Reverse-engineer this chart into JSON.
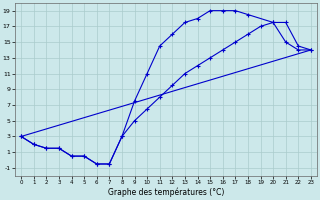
{
  "xlabel": "Graphe des températures (°C)",
  "bg_color": "#cce8ea",
  "grid_color": "#aacccc",
  "line_color": "#0000cc",
  "xlim": [
    -0.5,
    23.5
  ],
  "ylim": [
    -2,
    20
  ],
  "xticks": [
    0,
    1,
    2,
    3,
    4,
    5,
    6,
    7,
    8,
    9,
    10,
    11,
    12,
    13,
    14,
    15,
    16,
    17,
    18,
    19,
    20,
    21,
    22,
    23
  ],
  "yticks": [
    -1,
    1,
    3,
    5,
    7,
    9,
    11,
    13,
    15,
    17,
    19
  ],
  "line1_x": [
    0,
    1,
    2,
    3,
    4,
    5,
    6,
    7,
    8,
    9,
    10,
    11,
    12,
    13,
    14,
    15,
    16,
    17,
    18,
    20,
    21,
    22,
    23
  ],
  "line1_y": [
    3,
    2,
    1.5,
    1.5,
    0.5,
    0.5,
    -0.5,
    -0.5,
    3,
    7.5,
    11,
    14.5,
    16,
    17.5,
    18,
    19,
    19,
    19,
    18.5,
    17.5,
    15,
    14,
    14
  ],
  "line2_x": [
    0,
    1,
    2,
    3,
    4,
    5,
    6,
    7,
    8,
    9,
    10,
    11,
    12,
    13,
    14,
    15,
    16,
    17,
    18,
    19,
    20,
    21,
    22,
    23
  ],
  "line2_y": [
    3,
    2,
    1.5,
    1.5,
    0.5,
    0.5,
    -0.5,
    -0.5,
    3.0,
    5.0,
    6.5,
    8.0,
    9.5,
    11.0,
    12.0,
    13.0,
    14.0,
    15.0,
    16.0,
    17.0,
    17.5,
    17.5,
    14.5,
    14
  ],
  "line3_x": [
    0,
    23
  ],
  "line3_y": [
    3,
    14
  ]
}
